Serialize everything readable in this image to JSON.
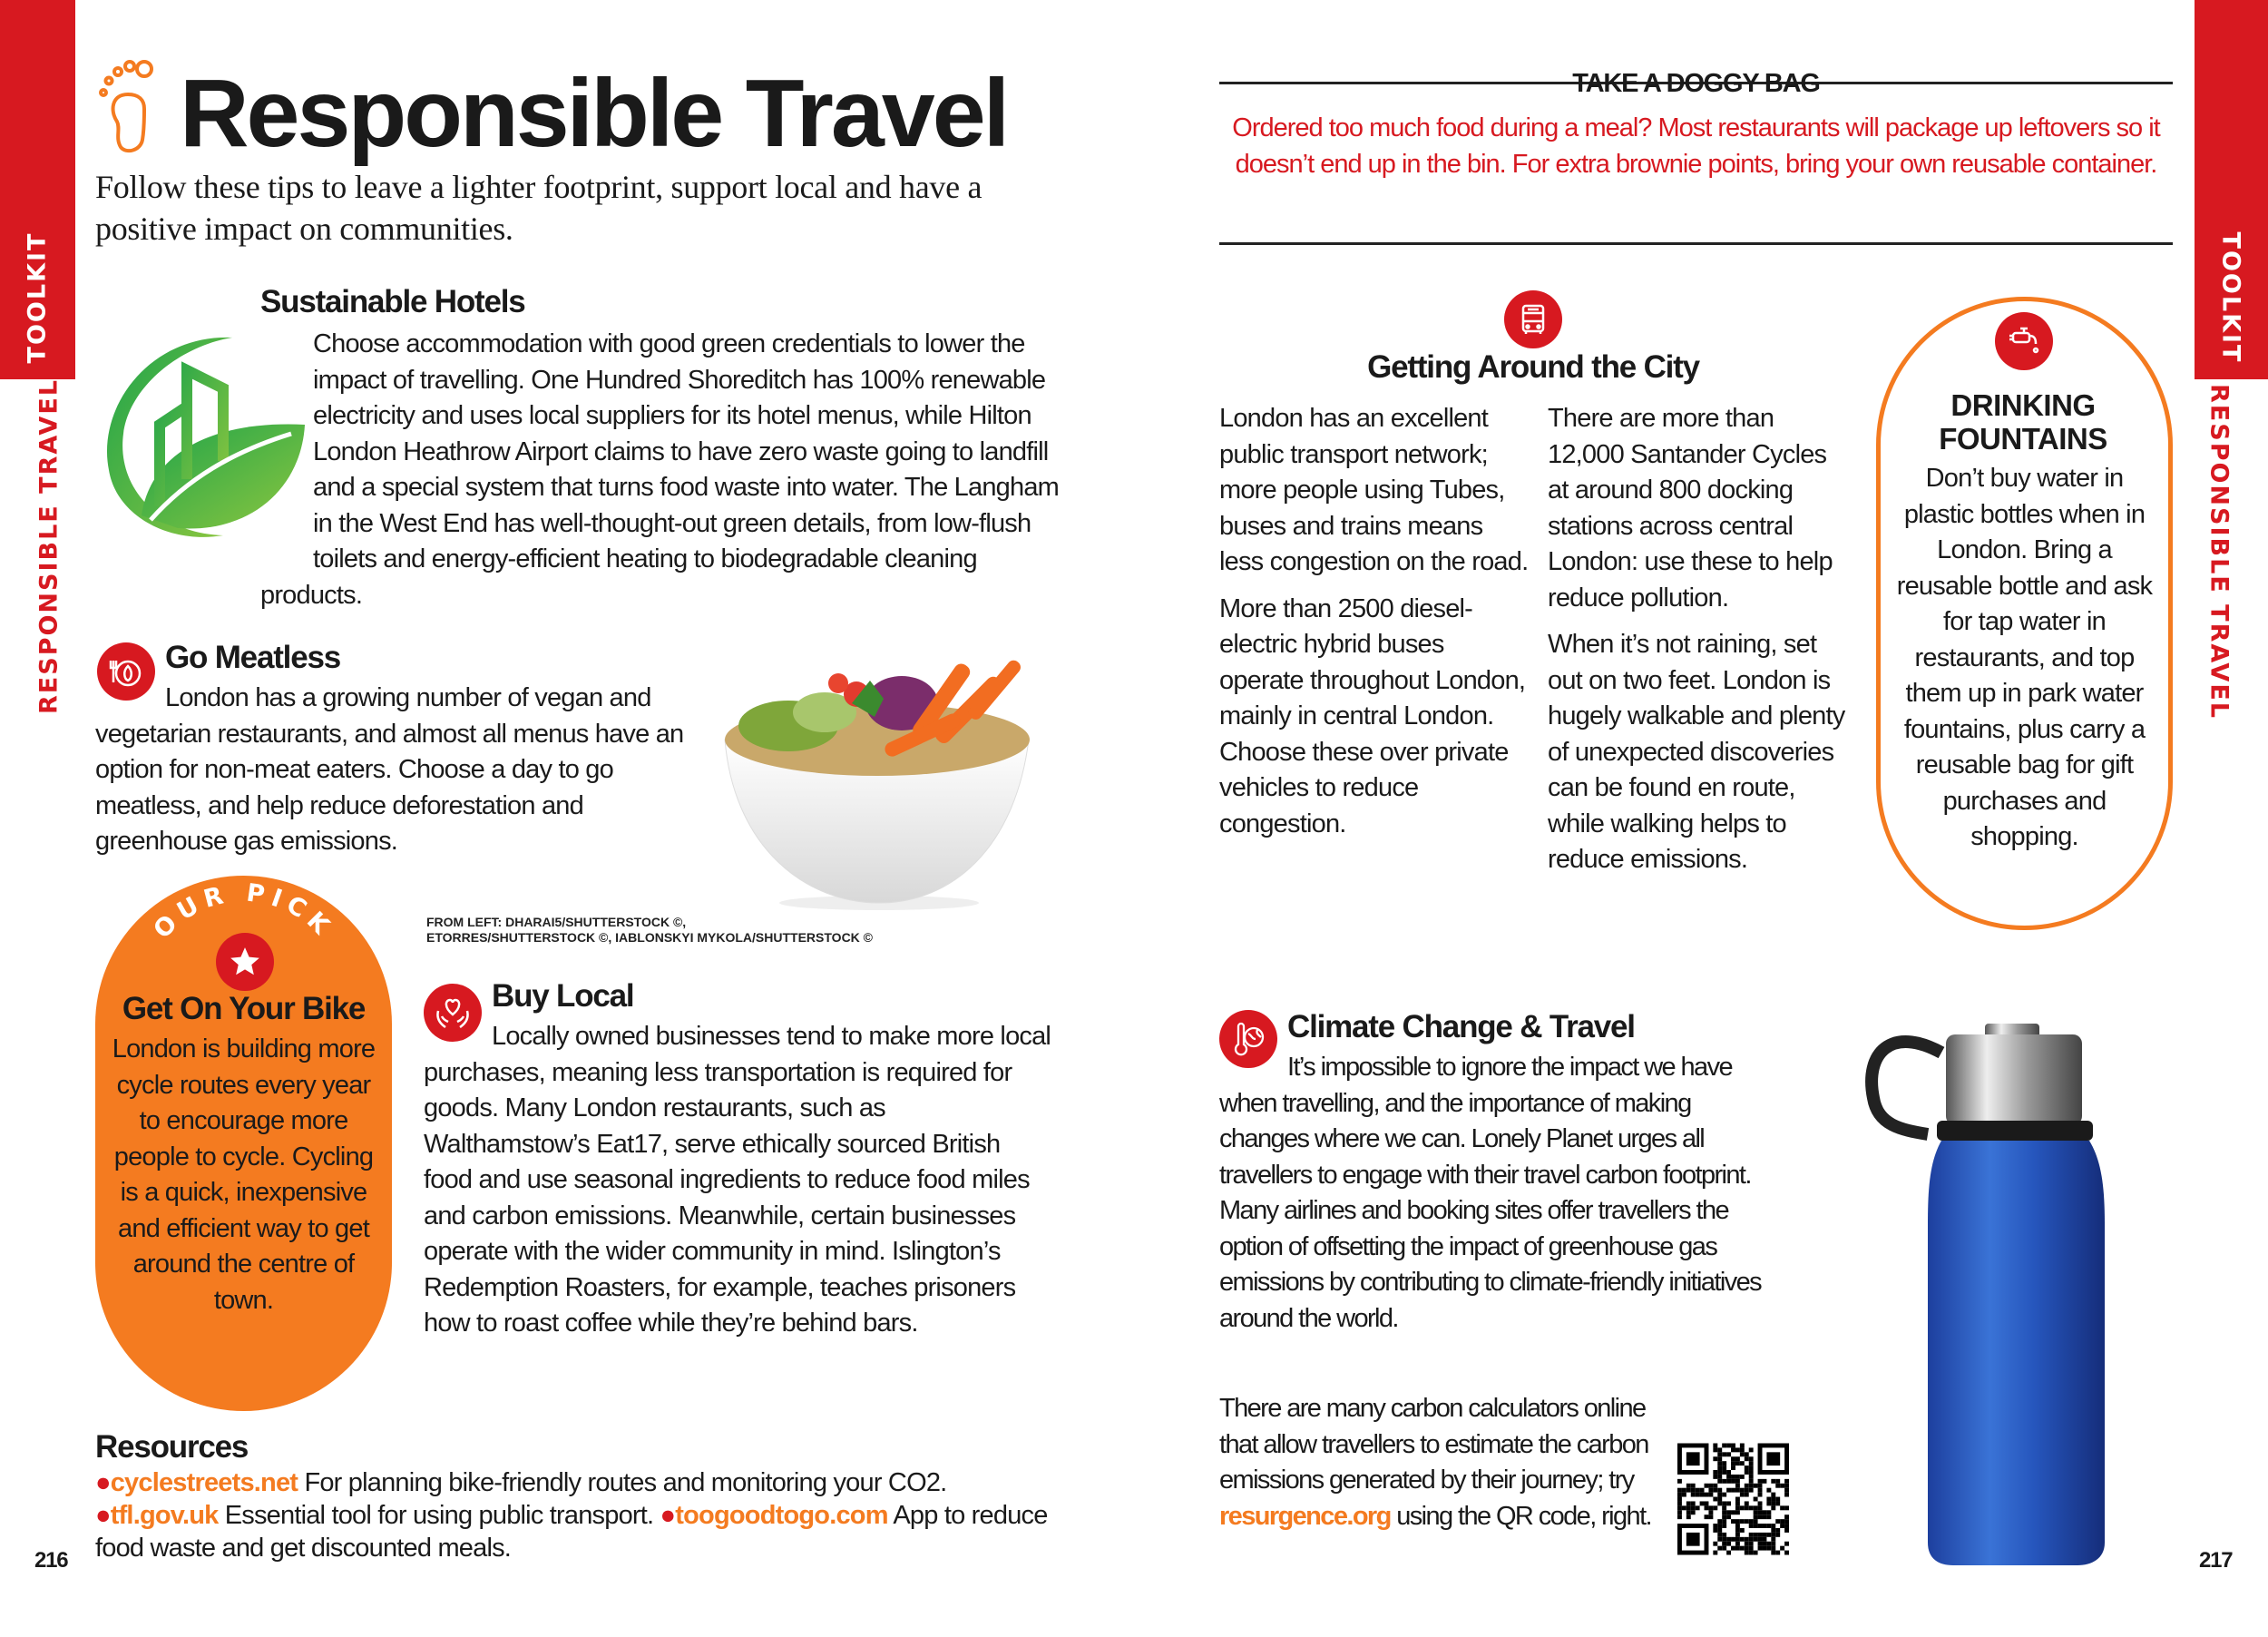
{
  "side_tabs": {
    "left_section": "TOOLKIT",
    "left_chapter": "RESPONSIBLE TRAVEL",
    "right_section": "TOOLKIT",
    "right_chapter": "RESPONSIBLE TRAVEL"
  },
  "colors": {
    "red": "#d71920",
    "orange": "#f47b20",
    "green": "#3db34a",
    "text": "#1a1a1a"
  },
  "header": {
    "icon": "footprint-icon",
    "title": "Responsible Travel",
    "subtitle": "Follow these tips to leave a lighter footprint, support local and have a positive impact on communities."
  },
  "hotels": {
    "icon": "green-building-leaf-icon",
    "heading": "Sustainable Hotels",
    "body": "Choose accommodation with good green credentials to lower the impact of travelling. One Hundred Shoreditch has 100% renewable electricity and uses local suppliers for its hotel menus, while Hilton London Heathrow Airport claims to have zero waste going to landfill and a special system that turns food waste into water. The Langham in the West End has well-thought-out green details, from low-flush toilets and energy-efficient heating to biodegradable cleaning products."
  },
  "meatless": {
    "icon": "leaf-plate-icon",
    "heading": "Go Meatless",
    "body": "London has a growing number of vegan and vegetarian restaurants, and almost all menus have an option for non-meat eaters. Choose a day to go meatless, and help reduce deforestation and greenhouse gas emissions."
  },
  "photo_credit": {
    "line1": "FROM LEFT: DHARAI5/SHUTTERSTOCK ©,",
    "line2": "ETORRES/SHUTTERSTOCK ©, IABLONSKYI MYKOLA/SHUTTERSTOCK ©"
  },
  "our_pick": {
    "badge": "OUR PICK",
    "icon": "star-icon",
    "heading": "Get On Your Bike",
    "body": "London is building more cycle routes every year to encourage more people to cycle. Cycling is a quick, inexpensive and efficient way to get around the centre of town."
  },
  "buy_local": {
    "icon": "heart-hands-icon",
    "heading": "Buy Local",
    "body": "Locally owned businesses tend to make more local purchases, meaning less transportation is required for goods. Many London restaurants, such as Walthamstow’s Eat17, serve ethically sourced British food and use seasonal ingredients to reduce food miles and carbon emissions. Meanwhile, certain businesses operate with the wider community in mind. Islington’s Redemption Roasters, for example, teaches prisoners how to roast coffee while they’re behind bars."
  },
  "resources": {
    "heading": "Resources",
    "items": [
      {
        "link": "cyclestreets.net",
        "text": "For planning bike-friendly routes and monitoring your CO2."
      },
      {
        "link": "tfl.gov.uk",
        "text": "Essential tool for using public transport."
      },
      {
        "link": "toogoodtogo.com",
        "text": "App to reduce food waste and get discounted meals."
      }
    ]
  },
  "page_numbers": {
    "left": "216",
    "right": "217"
  },
  "doggy_bag": {
    "heading": "TAKE A DOGGY BAG",
    "body": "Ordered too much food during a meal? Most restaurants will package up leftovers so it doesn’t end up in the bin. For extra brownie points, bring your own reusable container."
  },
  "getting_around": {
    "icon": "bus-icon",
    "heading": "Getting Around the City",
    "col1": [
      "London has an excellent public transport network; more people using Tubes, buses and trains means less congestion on the road.",
      "More than 2500 diesel-electric hybrid buses operate throughout London, mainly in central London. Choose these over private vehicles to reduce congestion."
    ],
    "col2": [
      "There are more than 12,000 Santander Cycles at around 800 docking stations across central London: use these to help reduce pollution.",
      "When it’s not raining, set out on two feet. London is hugely walkable and plenty of unexpected discoveries can be found en route, while walking helps to reduce emissions."
    ]
  },
  "fountains": {
    "icon": "water-tap-icon",
    "heading": "DRINKING FOUNTAINS",
    "body": "Don’t buy water in plastic bottles when in London. Bring a reusable bottle and ask for tap water in restaurants, and top them up in park water fountains, plus carry a reusable bag for gift purchases and shopping."
  },
  "climate": {
    "icon": "thermometer-globe-icon",
    "heading": "Climate Change & Travel",
    "body": "It’s impossible to ignore the impact we have when travelling, and the importance of making changes where we can. Lonely Planet urges all travellers to engage with their travel carbon footprint. Many airlines and booking sites offer travellers the option of offsetting the impact of greenhouse gas emissions by contributing to climate-friendly initiatives around the world.",
    "calc_text_before": "There are many carbon calculators online that allow travellers to estimate the carbon emissions generated by their journey; try",
    "calc_link": "resurgence.org",
    "calc_text_after": "using the QR code, right.",
    "qr": "qr-code"
  }
}
